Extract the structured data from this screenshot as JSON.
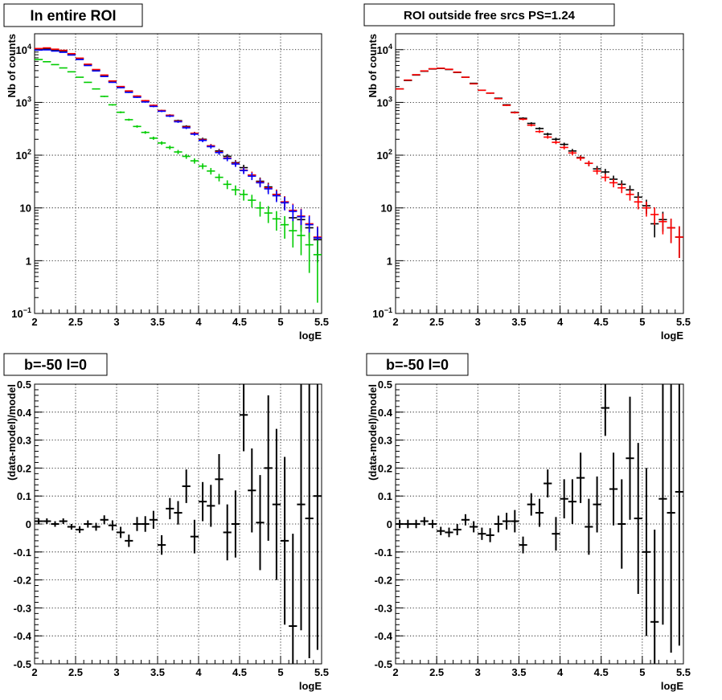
{
  "chart_data": [
    {
      "type": "scatter",
      "title": "In entire ROI",
      "xlabel": "logE",
      "ylabel": "Nb of counts",
      "xlim": [
        2,
        5.5
      ],
      "ylim": [
        0.1,
        20000
      ],
      "log_y": true,
      "grid": true,
      "x_ticks": [
        "2",
        "2.5",
        "3",
        "3.5",
        "4",
        "4.5",
        "5",
        "5.5"
      ],
      "y_ticks": [
        "10-1",
        "1",
        "10",
        "10^2",
        "10^3",
        "10^4"
      ],
      "x": [
        2.05,
        2.15,
        2.25,
        2.35,
        2.45,
        2.55,
        2.65,
        2.75,
        2.85,
        2.95,
        3.05,
        3.15,
        3.25,
        3.35,
        3.45,
        3.55,
        3.65,
        3.75,
        3.85,
        3.95,
        4.05,
        4.15,
        4.25,
        4.35,
        4.45,
        4.55,
        4.65,
        4.75,
        4.85,
        4.95,
        5.05,
        5.15,
        5.25,
        5.35,
        5.45
      ],
      "series": [
        {
          "color": "#000000",
          "values": [
            10200,
            10300,
            9900,
            9400,
            8200,
            6700,
            5200,
            4100,
            3200,
            2500,
            1950,
            1600,
            1300,
            1050,
            870,
            700,
            570,
            450,
            350,
            260,
            200,
            150,
            120,
            95,
            72,
            58,
            42,
            32,
            25,
            18,
            13,
            6.5,
            6,
            4.2,
            2.5
          ]
        },
        {
          "color": "#ff0000",
          "values": [
            10500,
            10800,
            10200,
            9700,
            8400,
            6900,
            5300,
            4200,
            3300,
            2550,
            2000,
            1650,
            1320,
            1080,
            880,
            700,
            570,
            440,
            340,
            260,
            195,
            150,
            115,
            88,
            70,
            52,
            42,
            31,
            24,
            18,
            13,
            9,
            7,
            5,
            2.8
          ]
        },
        {
          "color": "#0000ff",
          "values": [
            9800,
            9900,
            9400,
            8900,
            7900,
            6500,
            5000,
            3950,
            3100,
            2400,
            1900,
            1550,
            1250,
            1020,
            840,
            680,
            550,
            430,
            330,
            250,
            190,
            145,
            112,
            86,
            68,
            51,
            40,
            30,
            23,
            17,
            12.5,
            8.6,
            6.8,
            4.8,
            2.7
          ]
        },
        {
          "color": "#00cc00",
          "values": [
            6500,
            5900,
            5200,
            4500,
            3800,
            3000,
            2400,
            1800,
            1300,
            900,
            650,
            470,
            350,
            270,
            210,
            170,
            140,
            115,
            95,
            78,
            62,
            50,
            38,
            28,
            22,
            18,
            14,
            10,
            8,
            6.2,
            4.8,
            3.7,
            3,
            2,
            1.3
          ]
        }
      ]
    },
    {
      "type": "scatter",
      "title": "ROI outside free srcs PS=1.24",
      "xlabel": "logE",
      "ylabel": "Nb of counts",
      "xlim": [
        2,
        5.5
      ],
      "ylim": [
        0.1,
        20000
      ],
      "log_y": true,
      "grid": true,
      "x_ticks": [
        "2",
        "2.5",
        "3",
        "3.5",
        "4",
        "4.5",
        "5",
        "5.5"
      ],
      "y_ticks": [
        "10-1",
        "1",
        "10",
        "10^2",
        "10^3",
        "10^4"
      ],
      "x": [
        2.05,
        2.15,
        2.25,
        2.35,
        2.45,
        2.55,
        2.65,
        2.75,
        2.85,
        2.95,
        3.05,
        3.15,
        3.25,
        3.35,
        3.45,
        3.55,
        3.65,
        3.75,
        3.85,
        3.95,
        4.05,
        4.15,
        4.25,
        4.35,
        4.45,
        4.55,
        4.65,
        4.75,
        4.85,
        4.95,
        5.05,
        5.15,
        5.25,
        5.35,
        5.45
      ],
      "series": [
        {
          "color": "#000000",
          "values": [
            1800,
            2600,
            3300,
            3900,
            4300,
            4400,
            4200,
            3700,
            3000,
            2300,
            1700,
            1500,
            1200,
            900,
            650,
            500,
            400,
            320,
            250,
            200,
            160,
            120,
            90,
            70,
            55,
            48,
            35,
            28,
            22,
            16,
            11,
            5,
            6,
            4.2,
            2.8
          ]
        },
        {
          "color": "#ff0000",
          "values": [
            1800,
            2650,
            3350,
            3950,
            4350,
            4450,
            4250,
            3750,
            3000,
            2250,
            1700,
            1500,
            1180,
            880,
            640,
            480,
            370,
            280,
            220,
            175,
            140,
            110,
            88,
            70,
            50,
            38,
            30,
            24,
            18,
            13,
            10,
            7.5,
            5.5,
            4.2,
            2.8
          ]
        }
      ]
    },
    {
      "type": "scatter",
      "title": "b=-50 l=0",
      "xlabel": "logE",
      "ylabel": "(data-model)/model",
      "xlim": [
        2,
        5.5
      ],
      "ylim": [
        -0.5,
        0.5
      ],
      "grid": true,
      "x_ticks": [
        "2",
        "2.5",
        "3",
        "3.5",
        "4",
        "4.5",
        "5",
        "5.5"
      ],
      "y_ticks": [
        "-0.5",
        "-0.4",
        "-0.3",
        "-0.2",
        "-0.1",
        "0",
        "0.1",
        "0.2",
        "0.3",
        "0.4",
        "0.5"
      ],
      "x": [
        2.05,
        2.15,
        2.25,
        2.35,
        2.45,
        2.55,
        2.65,
        2.75,
        2.85,
        2.95,
        3.05,
        3.15,
        3.25,
        3.35,
        3.45,
        3.55,
        3.65,
        3.75,
        3.85,
        3.95,
        4.05,
        4.15,
        4.25,
        4.35,
        4.45,
        4.55,
        4.65,
        4.75,
        4.85,
        4.95,
        5.05,
        5.15,
        5.25,
        5.35,
        5.45
      ],
      "values": [
        0.01,
        0.01,
        0.0,
        0.01,
        -0.01,
        -0.02,
        0.0,
        -0.01,
        0.015,
        -0.005,
        -0.03,
        -0.06,
        0.0,
        0.0,
        0.015,
        -0.075,
        0.055,
        0.04,
        0.135,
        -0.045,
        0.08,
        0.065,
        0.16,
        -0.03,
        0.0,
        0.39,
        0.12,
        0.005,
        0.2,
        0.07,
        -0.06,
        -0.365,
        0.07,
        0.02,
        0.1
      ],
      "errors": [
        0.01,
        0.01,
        0.01,
        0.01,
        0.01,
        0.012,
        0.013,
        0.014,
        0.016,
        0.018,
        0.02,
        0.022,
        0.025,
        0.028,
        0.032,
        0.035,
        0.038,
        0.042,
        0.06,
        0.06,
        0.07,
        0.075,
        0.09,
        0.1,
        0.12,
        0.13,
        0.15,
        0.17,
        0.26,
        0.27,
        0.3,
        0.33,
        0.45,
        0.5,
        0.55
      ]
    },
    {
      "type": "scatter",
      "title": "b=-50 l=0",
      "xlabel": "logE",
      "ylabel": "(data-model)/model",
      "xlim": [
        2,
        5.5
      ],
      "ylim": [
        -0.5,
        0.5
      ],
      "grid": true,
      "x_ticks": [
        "2",
        "2.5",
        "3",
        "3.5",
        "4",
        "4.5",
        "5",
        "5.5"
      ],
      "y_ticks": [
        "-0.5",
        "-0.4",
        "-0.3",
        "-0.2",
        "-0.1",
        "0",
        "0.1",
        "0.2",
        "0.3",
        "0.4",
        "0.5"
      ],
      "x": [
        2.05,
        2.15,
        2.25,
        2.35,
        2.45,
        2.55,
        2.65,
        2.75,
        2.85,
        2.95,
        3.05,
        3.15,
        3.25,
        3.35,
        3.45,
        3.55,
        3.65,
        3.75,
        3.85,
        3.95,
        4.05,
        4.15,
        4.25,
        4.35,
        4.45,
        4.55,
        4.65,
        4.75,
        4.85,
        4.95,
        5.05,
        5.15,
        5.25,
        5.35,
        5.45
      ],
      "values": [
        0.0,
        0.0,
        0.0,
        0.01,
        0.0,
        -0.025,
        -0.03,
        -0.02,
        0.015,
        -0.01,
        -0.035,
        -0.04,
        0.0,
        0.01,
        0.01,
        -0.075,
        0.07,
        0.04,
        0.145,
        -0.035,
        0.09,
        0.08,
        0.165,
        -0.01,
        0.07,
        0.415,
        0.125,
        0.0,
        0.235,
        0.02,
        -0.1,
        -0.35,
        0.09,
        0.04,
        0.115
      ],
      "errors": [
        0.015,
        0.015,
        0.015,
        0.015,
        0.015,
        0.015,
        0.017,
        0.02,
        0.02,
        0.02,
        0.022,
        0.025,
        0.03,
        0.03,
        0.04,
        0.03,
        0.04,
        0.05,
        0.05,
        0.06,
        0.07,
        0.08,
        0.09,
        0.1,
        0.1,
        0.1,
        0.13,
        0.16,
        0.22,
        0.27,
        0.3,
        0.33,
        0.45,
        0.5,
        0.55
      ]
    }
  ]
}
